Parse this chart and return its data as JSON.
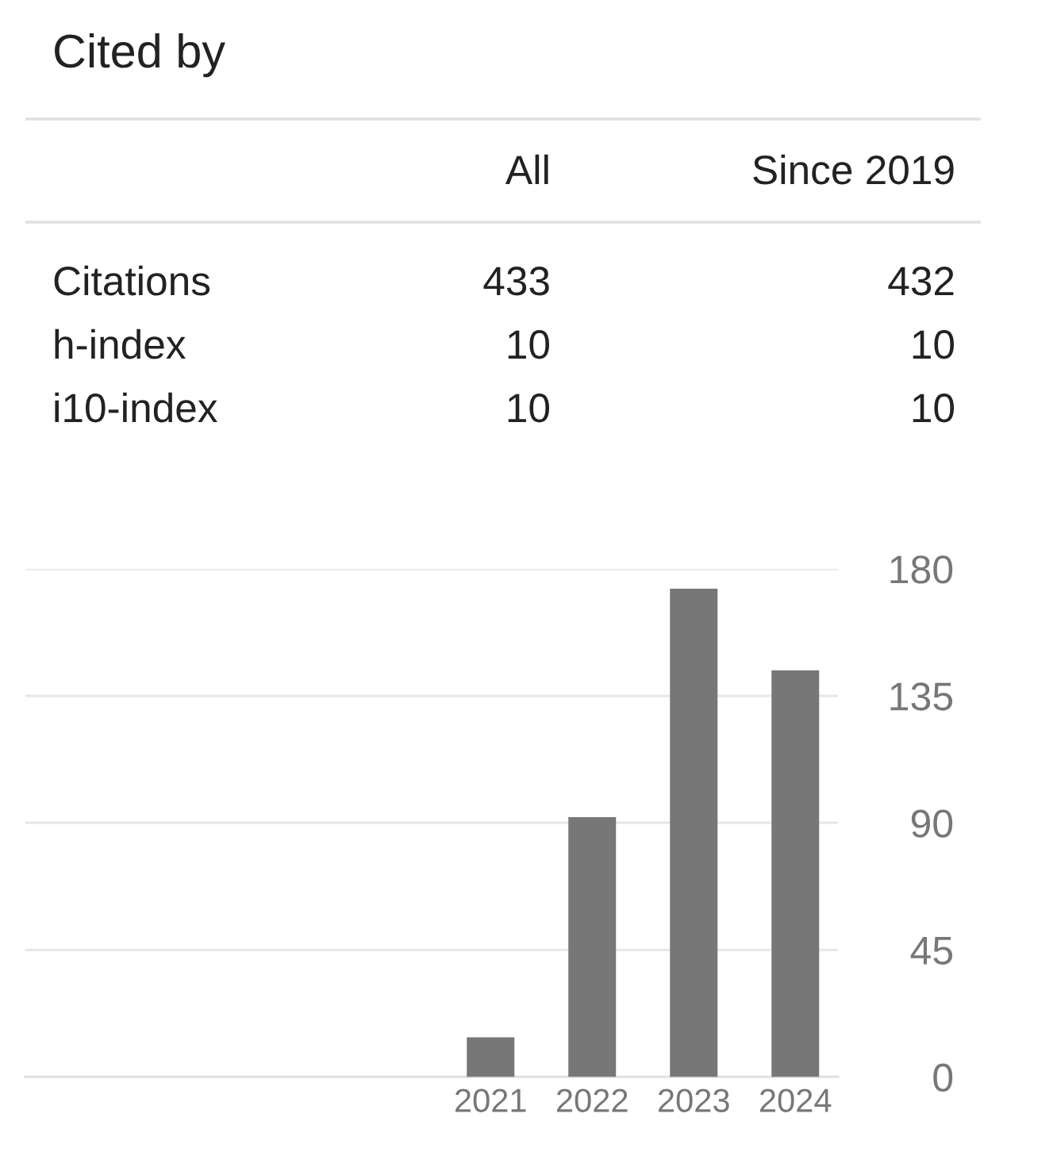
{
  "chart_data": [
    {
      "type": "other",
      "title": "Cited by",
      "categories": [
        "All",
        "Since 2019"
      ],
      "y_categories": [
        "Citations",
        "h-index",
        "i10-index"
      ],
      "annotations": [
        "433",
        "432",
        "10",
        "10",
        "10",
        "10"
      ]
    },
    {
      "type": "bar",
      "categories": [
        "2021",
        "2022",
        "2023",
        "2024"
      ],
      "values": [
        14,
        92,
        173,
        144
      ],
      "color": "#777777",
      "ylim": [
        0,
        180
      ],
      "yticks": [
        0,
        45,
        90,
        135,
        180
      ],
      "grid": "y"
    }
  ]
}
